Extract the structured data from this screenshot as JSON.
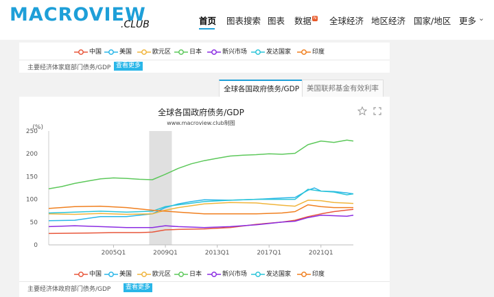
{
  "header": {
    "logo": "MACROVIEW",
    "logo_sub": ".CLUB",
    "nav": [
      "首页",
      "图表搜索",
      "图表",
      "数据",
      "全球经济",
      "地区经济",
      "国家/地区",
      "更多"
    ],
    "active_nav": "首页",
    "badge": "N"
  },
  "legend": {
    "items": [
      {
        "label": "中国",
        "color": "#e8563a"
      },
      {
        "label": "美国",
        "color": "#29b6e8"
      },
      {
        "label": "欧元区",
        "color": "#f0b43a"
      },
      {
        "label": "日本",
        "color": "#5cc85a"
      },
      {
        "label": "新兴市场",
        "color": "#8a2be2"
      },
      {
        "label": "发达国家",
        "color": "#29c4d8"
      },
      {
        "label": "印度",
        "color": "#f07f1e"
      }
    ]
  },
  "top_caption": {
    "text": "主要经济体家庭部门债务/GDP",
    "more": "查看更多"
  },
  "tabs": {
    "active": "全球各国政府债务/GDP",
    "inactive": "美国联邦基金有效利率"
  },
  "bottom_caption": {
    "text": "主要经济体政府部门债务/GDP",
    "more": "查看更多"
  },
  "chart_data": {
    "type": "line",
    "title": "全球各国政府债务/GDP",
    "subtitle": "www.macroview.club制图",
    "ylabel": "(%)",
    "ylim": [
      0,
      250
    ],
    "yticks": [
      0,
      50,
      100,
      150,
      200,
      250
    ],
    "xlim": [
      2000,
      2023.5
    ],
    "xticks": [
      2005,
      2009,
      2013,
      2017,
      2021
    ],
    "xtick_labels": [
      "2005Q1",
      "2009Q1",
      "2013Q1",
      "2017Q1",
      "2021Q1"
    ],
    "shaded_region": [
      2007.75,
      2009.5
    ],
    "series": [
      {
        "name": "中国",
        "color": "#e8563a",
        "x": [
          2000,
          2003,
          2005,
          2007,
          2008,
          2009,
          2010,
          2012,
          2014,
          2016,
          2018,
          2019,
          2020,
          2021,
          2022,
          2023.5
        ],
        "y": [
          25,
          26,
          27,
          27,
          28,
          33,
          34,
          35,
          38,
          45,
          50,
          54,
          62,
          68,
          73,
          78
        ]
      },
      {
        "name": "美国",
        "color": "#29b6e8",
        "x": [
          2000,
          2002,
          2004,
          2006,
          2008,
          2009,
          2010,
          2011,
          2012,
          2014,
          2016,
          2018,
          2019,
          2020,
          2020.5,
          2021,
          2022,
          2023,
          2023.5
        ],
        "y": [
          53,
          54,
          62,
          62,
          68,
          82,
          90,
          95,
          99,
          98,
          100,
          103,
          104,
          120,
          125,
          118,
          117,
          114,
          112
        ]
      },
      {
        "name": "欧元区",
        "color": "#f0b43a",
        "x": [
          2000,
          2002,
          2004,
          2006,
          2008,
          2009,
          2010,
          2012,
          2014,
          2016,
          2018,
          2019,
          2020,
          2021,
          2022,
          2023.5
        ],
        "y": [
          68,
          67,
          69,
          67,
          68,
          76,
          82,
          90,
          93,
          92,
          87,
          85,
          98,
          97,
          93,
          91
        ]
      },
      {
        "name": "日本",
        "color": "#5cc85a",
        "x": [
          2000,
          2001,
          2002,
          2003,
          2004,
          2005,
          2006,
          2007,
          2008,
          2009,
          2010,
          2011,
          2012,
          2013,
          2014,
          2015,
          2016,
          2017,
          2018,
          2019,
          2020,
          2021,
          2022,
          2023,
          2023.5
        ],
        "y": [
          123,
          128,
          135,
          140,
          145,
          147,
          146,
          144,
          143,
          155,
          168,
          178,
          185,
          190,
          195,
          197,
          198,
          200,
          199,
          201,
          220,
          228,
          225,
          230,
          228
        ]
      },
      {
        "name": "新兴市场",
        "color": "#8a2be2",
        "x": [
          2000,
          2002,
          2004,
          2006,
          2008,
          2009,
          2010,
          2012,
          2014,
          2016,
          2018,
          2019,
          2020,
          2021,
          2022,
          2023,
          2023.5
        ],
        "y": [
          40,
          42,
          40,
          38,
          38,
          42,
          40,
          38,
          40,
          44,
          50,
          52,
          60,
          65,
          64,
          63,
          65
        ]
      },
      {
        "name": "发达国家",
        "color": "#29c4d8",
        "x": [
          2000,
          2002,
          2004,
          2006,
          2008,
          2009,
          2010,
          2012,
          2014,
          2016,
          2018,
          2019,
          2020,
          2021,
          2022,
          2023,
          2023.5
        ],
        "y": [
          70,
          72,
          74,
          72,
          74,
          84,
          88,
          95,
          98,
          100,
          100,
          100,
          122,
          118,
          116,
          110,
          112
        ]
      },
      {
        "name": "印度",
        "color": "#f07f1e",
        "x": [
          2000,
          2002,
          2004,
          2006,
          2008,
          2009,
          2010,
          2012,
          2014,
          2016,
          2018,
          2019,
          2020,
          2021,
          2022,
          2023.5
        ],
        "y": [
          80,
          84,
          85,
          82,
          76,
          74,
          72,
          68,
          68,
          68,
          70,
          73,
          88,
          84,
          82,
          82
        ]
      }
    ]
  }
}
